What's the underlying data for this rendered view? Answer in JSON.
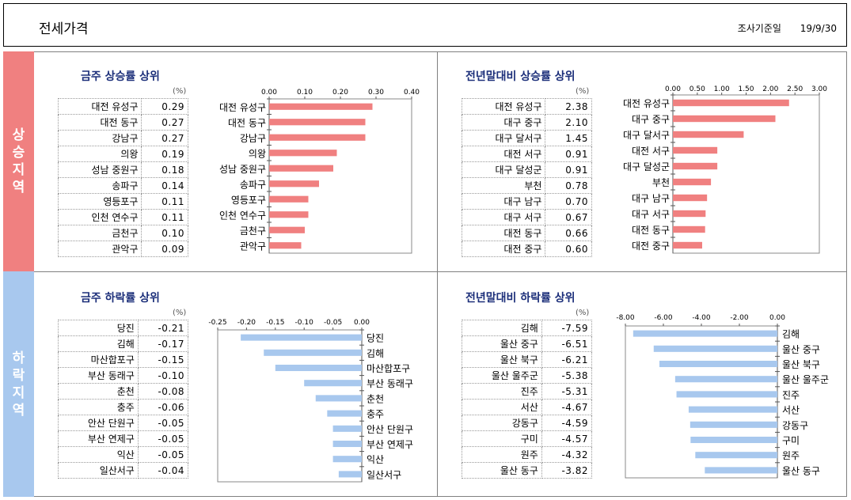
{
  "header": {
    "title": "전세가격",
    "date_label": "조사기준일",
    "date_value": "19/9/30"
  },
  "sections": {
    "up_label": "상승지역",
    "down_label": "하락지역"
  },
  "colors": {
    "up": "#f08080",
    "down": "#a8c8ee",
    "title": "#1c2f7a"
  },
  "panels": {
    "week_up": {
      "title": "금주 상승률 상위",
      "unit": "(%)",
      "rows": [
        {
          "name": "대전 유성구",
          "value": "0.29"
        },
        {
          "name": "대전 동구",
          "value": "0.27"
        },
        {
          "name": "강남구",
          "value": "0.27"
        },
        {
          "name": "의왕",
          "value": "0.19"
        },
        {
          "name": "성남 중원구",
          "value": "0.18"
        },
        {
          "name": "송파구",
          "value": "0.14"
        },
        {
          "name": "영등포구",
          "value": "0.11"
        },
        {
          "name": "인천 연수구",
          "value": "0.11"
        },
        {
          "name": "금천구",
          "value": "0.10"
        },
        {
          "name": "관악구",
          "value": "0.09"
        }
      ]
    },
    "year_up": {
      "title": "전년말대비 상승률 상위",
      "unit": "(%)",
      "rows": [
        {
          "name": "대전 유성구",
          "value": "2.38"
        },
        {
          "name": "대구 중구",
          "value": "2.10"
        },
        {
          "name": "대구 달서구",
          "value": "1.45"
        },
        {
          "name": "대전 서구",
          "value": "0.91"
        },
        {
          "name": "대구 달성군",
          "value": "0.91"
        },
        {
          "name": "부천",
          "value": "0.78"
        },
        {
          "name": "대구 남구",
          "value": "0.70"
        },
        {
          "name": "대구 서구",
          "value": "0.67"
        },
        {
          "name": "대전 동구",
          "value": "0.66"
        },
        {
          "name": "대전 중구",
          "value": "0.60"
        }
      ]
    },
    "week_down": {
      "title": "금주 하락률 상위",
      "unit": "(%)",
      "rows": [
        {
          "name": "당진",
          "value": "-0.21"
        },
        {
          "name": "김해",
          "value": "-0.17"
        },
        {
          "name": "마산합포구",
          "value": "-0.15"
        },
        {
          "name": "부산 동래구",
          "value": "-0.10"
        },
        {
          "name": "춘천",
          "value": "-0.08"
        },
        {
          "name": "충주",
          "value": "-0.06"
        },
        {
          "name": "안산 단원구",
          "value": "-0.05"
        },
        {
          "name": "부산 연제구",
          "value": "-0.05"
        },
        {
          "name": "익산",
          "value": "-0.05"
        },
        {
          "name": "일산서구",
          "value": "-0.04"
        }
      ]
    },
    "year_down": {
      "title": "전년말대비 하락률 상위",
      "unit": "(%)",
      "rows": [
        {
          "name": "김해",
          "value": "-7.59"
        },
        {
          "name": "울산 중구",
          "value": "-6.51"
        },
        {
          "name": "울산 북구",
          "value": "-6.21"
        },
        {
          "name": "울산 울주군",
          "value": "-5.38"
        },
        {
          "name": "진주",
          "value": "-5.31"
        },
        {
          "name": "서산",
          "value": "-4.67"
        },
        {
          "name": "강동구",
          "value": "-4.59"
        },
        {
          "name": "구미",
          "value": "-4.57"
        },
        {
          "name": "원주",
          "value": "-4.32"
        },
        {
          "name": "울산 동구",
          "value": "-3.82"
        }
      ]
    }
  },
  "chart_data": [
    {
      "type": "bar",
      "orientation": "horizontal",
      "title": "금주 상승률 상위",
      "categories": [
        "대전 유성구",
        "대전 동구",
        "강남구",
        "의왕",
        "성남 중원구",
        "송파구",
        "영등포구",
        "인천 연수구",
        "금천구",
        "관악구"
      ],
      "values": [
        0.29,
        0.27,
        0.27,
        0.19,
        0.18,
        0.14,
        0.11,
        0.11,
        0.1,
        0.09
      ],
      "xlim": [
        0,
        0.4
      ],
      "ticks": [
        "0.00",
        "0.10",
        "0.20",
        "0.30",
        "0.40"
      ],
      "color": "#f08080"
    },
    {
      "type": "bar",
      "orientation": "horizontal",
      "title": "전년말대비 상승률 상위",
      "categories": [
        "대전 유성구",
        "대구 중구",
        "대구 달서구",
        "대전 서구",
        "대구 달성군",
        "부천",
        "대구 남구",
        "대구 서구",
        "대전 동구",
        "대전 중구"
      ],
      "values": [
        2.38,
        2.1,
        1.45,
        0.91,
        0.91,
        0.78,
        0.7,
        0.67,
        0.66,
        0.6
      ],
      "xlim": [
        0,
        3
      ],
      "ticks": [
        "0.00",
        "0.50",
        "1.00",
        "1.50",
        "2.00",
        "2.50",
        "3.00"
      ],
      "color": "#f08080"
    },
    {
      "type": "bar",
      "orientation": "horizontal",
      "title": "금주 하락률 상위",
      "categories": [
        "당진",
        "김해",
        "마산합포구",
        "부산 동래구",
        "춘천",
        "충주",
        "안산 단원구",
        "부산 연제구",
        "익산",
        "일산서구"
      ],
      "values": [
        -0.21,
        -0.17,
        -0.15,
        -0.1,
        -0.08,
        -0.06,
        -0.05,
        -0.05,
        -0.05,
        -0.04
      ],
      "xlim": [
        -0.25,
        0
      ],
      "ticks": [
        "-0.25",
        "-0.20",
        "-0.15",
        "-0.10",
        "-0.05",
        "0.00"
      ],
      "color": "#a8c8ee"
    },
    {
      "type": "bar",
      "orientation": "horizontal",
      "title": "전년말대비 하락률 상위",
      "categories": [
        "김해",
        "울산 중구",
        "울산 북구",
        "울산 울주군",
        "진주",
        "서산",
        "강동구",
        "구미",
        "원주",
        "울산 동구"
      ],
      "values": [
        -7.59,
        -6.51,
        -6.21,
        -5.38,
        -5.31,
        -4.67,
        -4.59,
        -4.57,
        -4.32,
        -3.82
      ],
      "xlim": [
        -8,
        0
      ],
      "ticks": [
        "-8.00",
        "-6.00",
        "-4.00",
        "-2.00",
        "0.00"
      ],
      "color": "#a8c8ee"
    }
  ]
}
